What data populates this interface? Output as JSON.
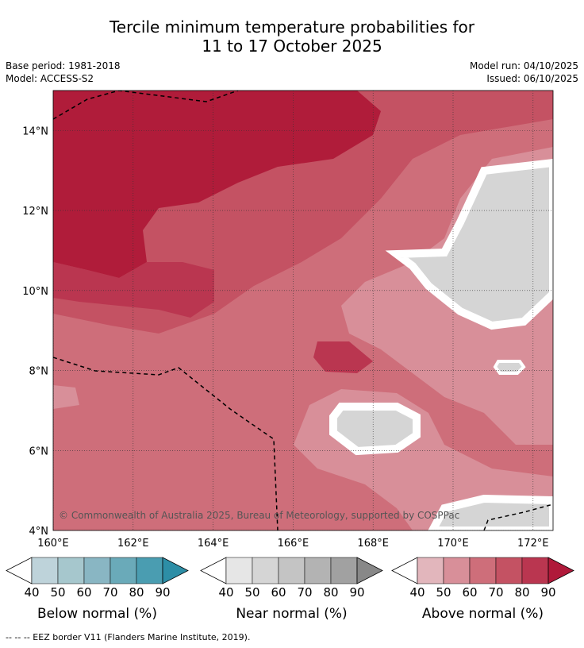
{
  "title_line1": "Tercile minimum temperature probabilities for",
  "title_line2": "11 to 17 October 2025",
  "base_period": "Base period: 1981-2018",
  "model": "Model: ACCESS-S2",
  "model_run": "Model run: 04/10/2025",
  "issued": "Issued: 06/10/2025",
  "copyright": "© Commonwealth of Australia 2025, Bureau of Meteorology, supported by COSPPac",
  "footer": "--  --  -- EEZ border V11 (Flanders Marine Institute, 2019).",
  "map": {
    "lon_labels": [
      "160°E",
      "162°E",
      "164°E",
      "166°E",
      "168°E",
      "170°E",
      "172°E"
    ],
    "lat_labels": [
      "14°N",
      "12°N",
      "10°N",
      "8°N",
      "6°N",
      "4°N"
    ],
    "lon_range": [
      160,
      172.5
    ],
    "lat_range": [
      4,
      15
    ]
  },
  "colorbars": [
    {
      "label": "Below normal (%)",
      "ticks": [
        "40",
        "50",
        "60",
        "70",
        "80",
        "90"
      ],
      "colors": [
        "#bed3da",
        "#a6c7cd",
        "#89b6c3",
        "#6aaab9",
        "#4a9db1",
        "#2d8ea6"
      ]
    },
    {
      "label": "Near normal (%)",
      "ticks": [
        "40",
        "50",
        "60",
        "70",
        "80",
        "90"
      ],
      "colors": [
        "#e6e6e6",
        "#d5d5d5",
        "#c4c4c4",
        "#b3b3b3",
        "#a1a1a1",
        "#888888"
      ]
    },
    {
      "label": "Above normal (%)",
      "ticks": [
        "40",
        "50",
        "60",
        "70",
        "80",
        "90"
      ],
      "colors": [
        "#e2b6bc",
        "#d88f99",
        "#ce6e7a",
        "#c45263",
        "#ba3650",
        "#b0193a"
      ]
    }
  ]
}
